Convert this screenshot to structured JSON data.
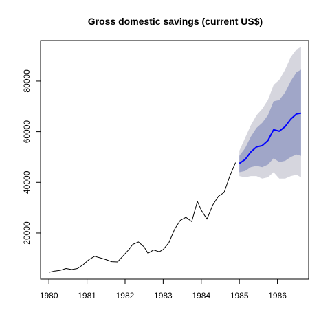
{
  "chart_data": {
    "type": "line",
    "title": "Gross domestic savings (current US$)",
    "xlabel": "",
    "ylabel": "",
    "xlim": [
      1979.78,
      1986.82
    ],
    "ylim": [
      1800,
      96000
    ],
    "x_ticks": [
      1980,
      1981,
      1982,
      1983,
      1984,
      1985,
      1986
    ],
    "x_tick_labels": [
      "1980",
      "1981",
      "1982",
      "1983",
      "1984",
      "1985",
      "1986"
    ],
    "y_ticks": [
      20000,
      40000,
      60000,
      80000
    ],
    "y_tick_labels": [
      "20000",
      "40000",
      "60000",
      "80000"
    ],
    "grid": false,
    "series": [
      {
        "role": "observed",
        "color": "#000000",
        "x": [
          1980.0,
          1980.15,
          1980.3,
          1980.45,
          1980.6,
          1980.75,
          1980.9,
          1981.05,
          1981.2,
          1981.35,
          1981.5,
          1981.65,
          1981.8,
          1981.95,
          1982.1,
          1982.2,
          1982.35,
          1982.5,
          1982.6,
          1982.75,
          1982.9,
          1983.0,
          1983.15,
          1983.3,
          1983.45,
          1983.6,
          1983.75,
          1983.9,
          1984.0,
          1984.15,
          1984.3,
          1984.45,
          1984.6,
          1984.75,
          1984.9
        ],
        "y": [
          4500,
          5000,
          5300,
          6000,
          5600,
          6000,
          7500,
          9500,
          10800,
          10200,
          9500,
          8700,
          8600,
          11000,
          13500,
          15500,
          16500,
          14500,
          12000,
          13300,
          12600,
          13500,
          16200,
          21500,
          25000,
          26200,
          24500,
          32500,
          29000,
          25500,
          31000,
          34500,
          36000,
          42500,
          47800
        ]
      },
      {
        "role": "forecast-mean",
        "color": "#0000ff",
        "x": [
          1985.0,
          1985.15,
          1985.3,
          1985.45,
          1985.6,
          1985.75,
          1985.9,
          1986.05,
          1986.2,
          1986.35,
          1986.5,
          1986.62
        ],
        "y": [
          47500,
          49000,
          52000,
          54000,
          54500,
          56500,
          60800,
          60200,
          62000,
          65000,
          67000,
          67300
        ]
      },
      {
        "role": "forecast-80-interval",
        "color": "#a0a6c8",
        "x": [
          1985.0,
          1985.15,
          1985.3,
          1985.45,
          1985.6,
          1985.75,
          1985.9,
          1986.05,
          1986.2,
          1986.35,
          1986.5,
          1986.62
        ],
        "lower": [
          44000,
          44500,
          46000,
          46500,
          46000,
          47000,
          49500,
          48000,
          48500,
          50000,
          51000,
          50500
        ],
        "upper": [
          50500,
          53500,
          58000,
          61500,
          63500,
          66500,
          72000,
          72500,
          75500,
          80000,
          83500,
          84500
        ]
      },
      {
        "role": "forecast-95-interval",
        "color": "#d6d6de",
        "x": [
          1985.0,
          1985.15,
          1985.3,
          1985.45,
          1985.6,
          1985.75,
          1985.9,
          1986.05,
          1986.2,
          1986.35,
          1986.5,
          1986.62
        ],
        "lower": [
          42500,
          42000,
          42500,
          42500,
          41500,
          42000,
          44000,
          41500,
          41500,
          42500,
          43000,
          42000
        ],
        "upper": [
          52500,
          57500,
          62500,
          66500,
          69000,
          72500,
          78500,
          80500,
          84500,
          89500,
          92500,
          93500
        ]
      }
    ]
  }
}
